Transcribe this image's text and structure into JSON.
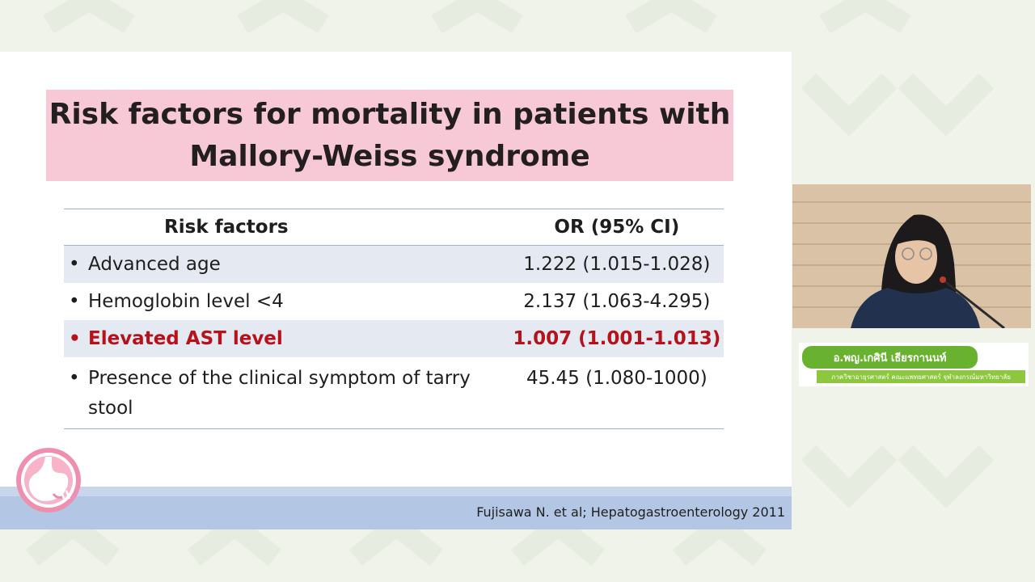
{
  "slide": {
    "title": "Risk factors for mortality in patients with\nMallory-Weiss syndrome",
    "table": {
      "headers": [
        "Risk factors",
        "OR (95% CI)"
      ],
      "rows": [
        {
          "factor": "Advanced age",
          "or": "1.222 (1.015-1.028)",
          "highlight": false
        },
        {
          "factor": "Hemoglobin level <4",
          "or": "2.137 (1.063-4.295)",
          "highlight": false
        },
        {
          "factor": "Elevated AST level",
          "or": "1.007 (1.001-1.013)",
          "highlight": true
        },
        {
          "factor": "Presence of the clinical symptom of tarry stool",
          "or": "45.45 (1.080-1000)",
          "highlight": false
        }
      ],
      "bullet": "•"
    },
    "citation": "Fujisawa N. et al; Hepatogastroenterology 2011",
    "logo_icon": "stomach-logo-icon"
  },
  "presenter": {
    "name": "อ.พญ.เกศินี เธียรกานนท์",
    "department": "ภาควิชาอายุรศาสตร์ คณะแพทยศาสตร์ จุฬาลงกรณ์มหาวิทยาลัย"
  },
  "colors": {
    "title_band": "#f7c9d6",
    "highlight_text": "#b5121b",
    "table_shade": "#e5eaf2",
    "footer_bar": "#b3c6e3",
    "name_pill": "#69b230",
    "dept_pill": "#8dc63f",
    "background": "#eff3e9"
  }
}
